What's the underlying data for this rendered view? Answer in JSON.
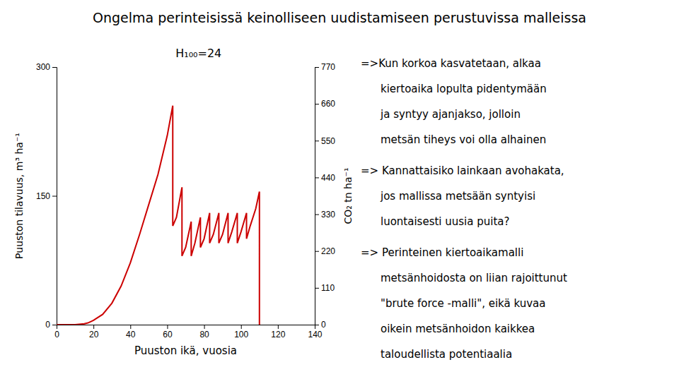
{
  "chart_data": {
    "type": "line",
    "title": "Ongelma perinteisissä keinolliseen uudistamiseen perustuvissa malleissa",
    "subtitle": "H₁₀₀=24",
    "x_label": "Puuston ikä, vuosia",
    "y_label": "Puuston tilavuus, m³ ha⁻¹",
    "y2_label": "CO₂ tn ha⁻¹",
    "x": [
      0,
      5,
      10,
      15,
      17,
      20,
      25,
      30,
      35,
      40,
      45,
      50,
      55,
      60,
      63,
      63,
      65,
      68,
      68,
      70,
      73,
      73,
      75,
      78,
      78,
      80,
      83,
      83,
      85,
      88,
      88,
      90,
      93,
      93,
      95,
      98,
      98,
      100,
      103,
      103,
      105,
      108,
      110,
      110
    ],
    "series": [
      {
        "color": "#cc0000",
        "values": [
          0,
          0,
          0,
          1,
          2,
          5,
          12,
          25,
          45,
          72,
          105,
          140,
          175,
          220,
          255,
          115,
          125,
          160,
          80,
          90,
          120,
          80,
          95,
          125,
          90,
          100,
          130,
          95,
          105,
          130,
          95,
          105,
          130,
          95,
          108,
          130,
          95,
          108,
          130,
          100,
          115,
          135,
          155,
          0
        ]
      }
    ],
    "xlim": [
      0,
      140
    ],
    "xticks": [
      0,
      20,
      40,
      60,
      80,
      100,
      120,
      140
    ],
    "ylim": [
      0,
      300
    ],
    "yticks": [
      0,
      150,
      300
    ],
    "y2lim": [
      0,
      770
    ],
    "y2ticks": [
      0,
      110,
      220,
      330,
      440,
      550,
      660,
      770
    ],
    "grid": false,
    "annotations": [
      [
        "=>Kun korkoa kasvatetaan, alkaa",
        "kiertoaika lopulta pidentymään",
        "ja syntyy ajanjakso, jolloin",
        "metsän tiheys voi olla alhainen"
      ],
      [
        "=> Kannattaisiko lainkaan avohakata,",
        "jos mallissa metsään syntyisi",
        "luontaisesti uusia puita?"
      ],
      [
        "=> Perinteinen kiertoaikamalli",
        "metsänhoidosta on liian rajoittunut",
        "\"brute force -malli\", eikä kuvaa",
        "oikein metsänhoidon kaikkea",
        "taloudellista potentiaalia"
      ]
    ]
  }
}
